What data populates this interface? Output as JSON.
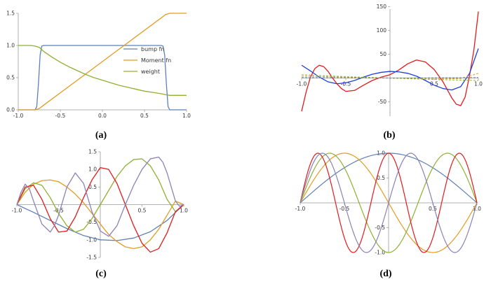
{
  "chart_data": [
    {
      "id": "a",
      "type": "line",
      "caption": "(a)",
      "xlim": [
        -1.0,
        1.0
      ],
      "ylim": [
        0.0,
        1.5
      ],
      "x_ticks": [
        "-1.0",
        "-0.5",
        "0.0",
        "0.5",
        "1.0"
      ],
      "y_ticks": [
        "0.0",
        "0.5",
        "1.0",
        "1.5"
      ],
      "legend_position": "center-right",
      "series": [
        {
          "name": "bump fn",
          "color": "#5E81B5",
          "x": [
            -1.0,
            -0.8,
            -0.78,
            -0.76,
            -0.74,
            -0.72,
            -0.7,
            -0.5,
            0.0,
            0.5,
            0.7,
            0.72,
            0.74,
            0.76,
            0.78,
            0.8,
            1.0
          ],
          "y": [
            0.0,
            0.0,
            0.05,
            0.4,
            0.85,
            0.99,
            1.0,
            1.0,
            1.0,
            1.0,
            1.0,
            0.99,
            0.85,
            0.4,
            0.05,
            0.0,
            0.0
          ]
        },
        {
          "name": "Moment fn",
          "color": "#E19C24",
          "x": [
            -1.0,
            -0.8,
            -0.75,
            -0.7,
            0.0,
            0.7,
            0.75,
            0.8,
            1.0
          ],
          "y": [
            0.0,
            0.0,
            0.02,
            0.07,
            0.75,
            1.43,
            1.48,
            1.5,
            1.5
          ]
        },
        {
          "name": "weight",
          "color": "#8FB032",
          "x": [
            -1.0,
            -0.85,
            -0.8,
            -0.75,
            -0.7,
            -0.6,
            -0.5,
            -0.4,
            -0.3,
            -0.2,
            -0.1,
            0.0,
            0.1,
            0.2,
            0.3,
            0.4,
            0.5,
            0.6,
            0.7,
            0.75,
            0.8,
            1.0
          ],
          "y": [
            1.0,
            1.0,
            0.99,
            0.97,
            0.91,
            0.82,
            0.74,
            0.67,
            0.61,
            0.55,
            0.5,
            0.46,
            0.42,
            0.38,
            0.35,
            0.32,
            0.29,
            0.27,
            0.25,
            0.235,
            0.225,
            0.225
          ]
        }
      ]
    },
    {
      "id": "b",
      "type": "line",
      "caption": "(b)",
      "xlim": [
        -1.0,
        1.0
      ],
      "ylim": [
        -80,
        145
      ],
      "x_ticks": [
        "-1.0",
        "-0.5",
        "0.5",
        "1.0"
      ],
      "y_ticks": [
        "-50",
        "50",
        "100",
        "150"
      ],
      "series": [
        {
          "color": "#E41A1C",
          "x": [
            -1.0,
            -0.95,
            -0.9,
            -0.85,
            -0.8,
            -0.75,
            -0.7,
            -0.65,
            -0.6,
            -0.55,
            -0.5,
            -0.4,
            -0.3,
            -0.2,
            -0.1,
            0.0,
            0.1,
            0.2,
            0.3,
            0.4,
            0.5,
            0.6,
            0.65,
            0.7,
            0.75,
            0.8,
            0.85,
            0.9,
            0.95,
            1.0
          ],
          "y": [
            -70,
            -30,
            2,
            20,
            27,
            24,
            14,
            0,
            -12,
            -22,
            -28,
            -26,
            -15,
            -5,
            2,
            7,
            17,
            30,
            38,
            34,
            18,
            -8,
            -25,
            -42,
            -55,
            -58,
            -40,
            5,
            60,
            140
          ]
        },
        {
          "color": "#1F3FD6",
          "x": [
            -1.0,
            -0.9,
            -0.8,
            -0.7,
            -0.6,
            -0.5,
            -0.4,
            -0.3,
            -0.2,
            -0.1,
            0.0,
            0.1,
            0.2,
            0.3,
            0.4,
            0.5,
            0.6,
            0.7,
            0.8,
            0.9,
            1.0
          ],
          "y": [
            27,
            15,
            2,
            -8,
            -12,
            -10,
            -5,
            2,
            8,
            12,
            14,
            13,
            10,
            4,
            -5,
            -15,
            -22,
            -25,
            -18,
            10,
            62
          ]
        },
        {
          "color": "#E19C24",
          "dashed": true,
          "x": [
            -1.0,
            -0.5,
            0.0,
            0.5,
            0.8,
            1.0
          ],
          "y": [
            4,
            2,
            0,
            -2,
            -1,
            10
          ]
        },
        {
          "color": "#8FB032",
          "dashed": true,
          "x": [
            -1.0,
            -0.5,
            0.0,
            0.5,
            1.0
          ],
          "y": [
            7,
            3,
            0,
            -3,
            -5
          ]
        },
        {
          "color": "#5E81B5",
          "dashed": true,
          "x": [
            -1.0,
            0.0,
            1.0
          ],
          "y": [
            1,
            0,
            1
          ]
        }
      ]
    },
    {
      "id": "c",
      "type": "line",
      "caption": "(c)",
      "xlim": [
        -1.0,
        1.0
      ],
      "ylim": [
        -1.5,
        1.5
      ],
      "x_ticks": [
        "-1.0",
        "-0.5",
        "0.5",
        "1.0"
      ],
      "y_ticks": [
        "-1.5",
        "-1.0",
        "-0.5",
        "0.5",
        "1.0",
        "1.5"
      ],
      "series": [
        {
          "color": "#5E81B5",
          "x": [
            -1.0,
            -0.8,
            -0.6,
            -0.4,
            -0.2,
            0.0,
            0.2,
            0.4,
            0.6,
            0.8,
            1.0
          ],
          "y": [
            0.0,
            -0.22,
            -0.45,
            -0.68,
            -0.88,
            -1.0,
            -1.02,
            -0.95,
            -0.77,
            -0.45,
            0.0
          ]
        },
        {
          "color": "#E19C24",
          "x": [
            -1.0,
            -0.9,
            -0.8,
            -0.7,
            -0.6,
            -0.5,
            -0.4,
            -0.3,
            -0.2,
            -0.1,
            0.0,
            0.1,
            0.2,
            0.3,
            0.4,
            0.5,
            0.6,
            0.7,
            0.8,
            0.9,
            1.0
          ],
          "y": [
            0.0,
            0.35,
            0.58,
            0.68,
            0.7,
            0.65,
            0.5,
            0.3,
            0.05,
            -0.25,
            -0.55,
            -0.85,
            -1.05,
            -1.2,
            -1.25,
            -1.2,
            -1.0,
            -0.7,
            -0.3,
            0.1,
            0.0
          ]
        },
        {
          "color": "#8FB032",
          "x": [
            -1.0,
            -0.9,
            -0.8,
            -0.7,
            -0.6,
            -0.5,
            -0.4,
            -0.3,
            -0.2,
            -0.1,
            0.0,
            0.1,
            0.2,
            0.3,
            0.4,
            0.5,
            0.6,
            0.7,
            0.8,
            0.9,
            1.0
          ],
          "y": [
            0.0,
            0.45,
            0.62,
            0.55,
            0.2,
            -0.25,
            -0.6,
            -0.78,
            -0.7,
            -0.4,
            0.0,
            0.4,
            0.8,
            1.1,
            1.28,
            1.3,
            1.1,
            0.7,
            0.15,
            -0.2,
            0.0
          ]
        },
        {
          "color": "#E41A1C",
          "x": [
            -1.0,
            -0.9,
            -0.8,
            -0.7,
            -0.6,
            -0.5,
            -0.4,
            -0.3,
            -0.2,
            -0.1,
            0.0,
            0.1,
            0.2,
            0.3,
            0.4,
            0.5,
            0.6,
            0.7,
            0.8,
            0.9,
            1.0
          ],
          "y": [
            0.0,
            0.5,
            0.55,
            0.15,
            -0.4,
            -0.78,
            -0.75,
            -0.35,
            0.2,
            0.7,
            1.05,
            1.0,
            0.6,
            0.0,
            -0.6,
            -1.1,
            -1.35,
            -1.25,
            -0.8,
            -0.2,
            0.0
          ]
        },
        {
          "color": "#8C82B8",
          "x": [
            -1.0,
            -0.95,
            -0.9,
            -0.85,
            -0.8,
            -0.7,
            -0.6,
            -0.55,
            -0.5,
            -0.4,
            -0.3,
            -0.2,
            -0.1,
            0.0,
            0.1,
            0.2,
            0.3,
            0.4,
            0.5,
            0.6,
            0.7,
            0.75,
            0.8,
            0.85,
            0.9,
            0.95,
            1.0
          ],
          "y": [
            0.0,
            0.35,
            0.58,
            0.45,
            0.1,
            -0.55,
            -0.78,
            -0.6,
            -0.3,
            0.5,
            0.9,
            0.6,
            -0.2,
            -0.75,
            -0.9,
            -0.6,
            0.0,
            0.55,
            1.0,
            1.3,
            1.35,
            1.2,
            0.9,
            0.5,
            0.1,
            -0.05,
            0.0
          ]
        }
      ]
    },
    {
      "id": "d",
      "type": "line",
      "caption": "(d)",
      "xlim": [
        -1.0,
        1.0
      ],
      "ylim": [
        -1.0,
        1.0
      ],
      "x_ticks": [
        "-1.0",
        "-0.5",
        "0.5",
        "1.0"
      ],
      "y_ticks": [
        "-1.0",
        "-0.5",
        "0.5",
        "1.0"
      ],
      "functions": [
        {
          "color": "#5E81B5",
          "k": 1
        },
        {
          "color": "#E19C24",
          "k": 2
        },
        {
          "color": "#8FB032",
          "k": 3
        },
        {
          "color": "#E41A1C",
          "k": 5
        },
        {
          "color": "#8C82B8",
          "k": 4
        }
      ]
    }
  ]
}
